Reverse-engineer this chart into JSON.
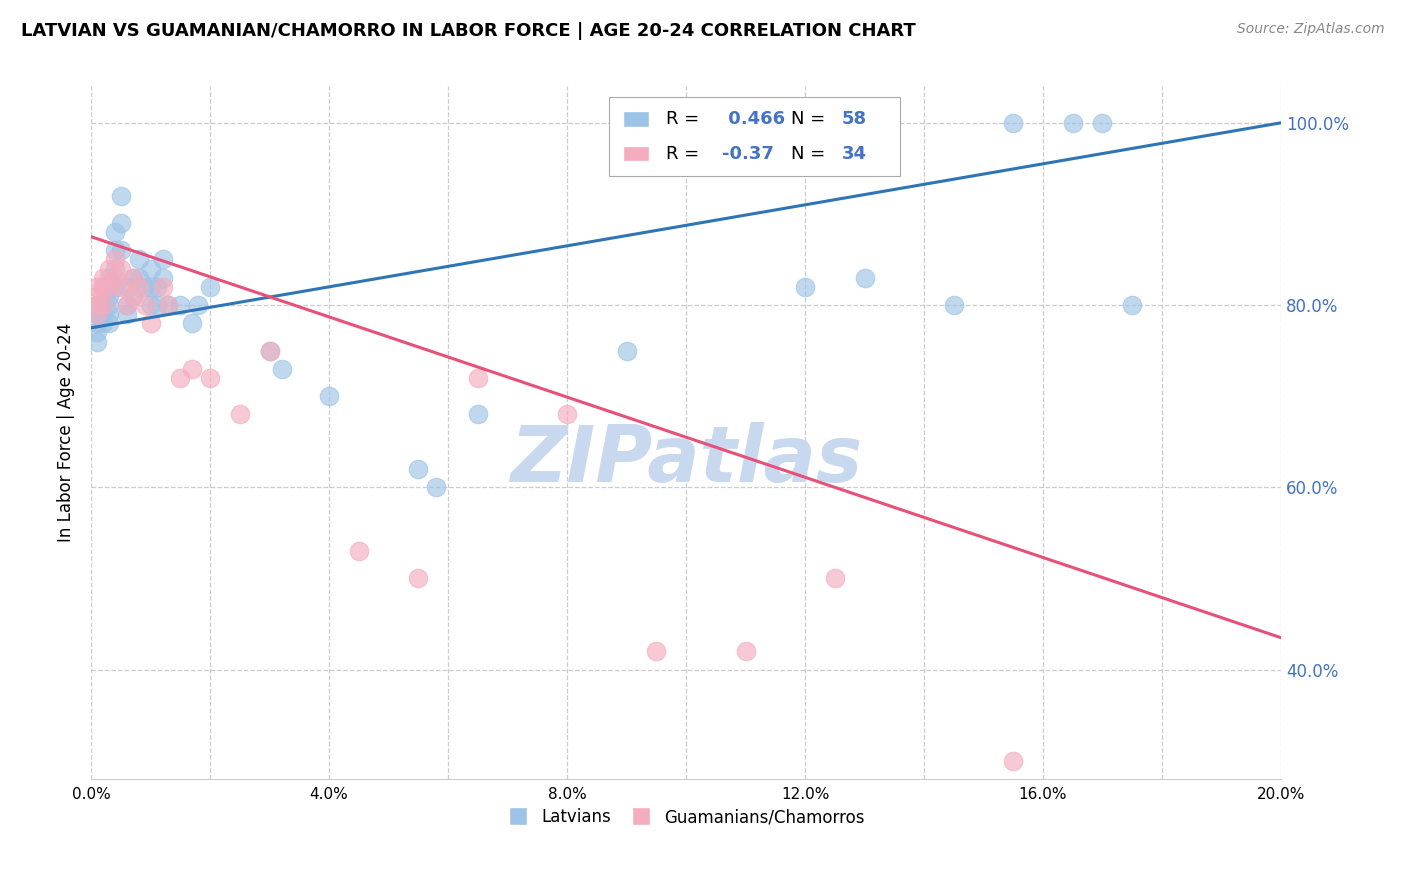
{
  "title": "LATVIAN VS GUAMANIAN/CHAMORRO IN LABOR FORCE | AGE 20-24 CORRELATION CHART",
  "source_text": "Source: ZipAtlas.com",
  "ylabel": "In Labor Force | Age 20-24",
  "xlim": [
    0.0,
    0.2
  ],
  "ylim": [
    0.28,
    1.04
  ],
  "x_ticks": [
    0.0,
    0.02,
    0.04,
    0.06,
    0.08,
    0.1,
    0.12,
    0.14,
    0.16,
    0.18,
    0.2
  ],
  "x_tick_labels": [
    "0.0%",
    "",
    "4.0%",
    "",
    "8.0%",
    "",
    "12.0%",
    "",
    "16.0%",
    "",
    "20.0%"
  ],
  "y_ticks": [
    0.4,
    0.6,
    0.8,
    1.0
  ],
  "blue_color": "#9DC3E6",
  "pink_color": "#F4ACBE",
  "blue_line_color": "#2E75B6",
  "pink_line_color": "#E8507A",
  "blue_R": 0.466,
  "blue_N": 58,
  "pink_R": -0.37,
  "pink_N": 34,
  "legend_label_blue": "Latvians",
  "legend_label_pink": "Guamanians/Chamorros",
  "watermark": "ZIPatlas",
  "watermark_color": "#C8D8EF",
  "latvian_x": [
    0.001,
    0.001,
    0.001,
    0.001,
    0.001,
    0.002,
    0.002,
    0.002,
    0.002,
    0.003,
    0.003,
    0.003,
    0.003,
    0.003,
    0.003,
    0.004,
    0.004,
    0.004,
    0.004,
    0.005,
    0.005,
    0.005,
    0.006,
    0.006,
    0.006,
    0.007,
    0.007,
    0.008,
    0.008,
    0.009,
    0.01,
    0.01,
    0.01,
    0.011,
    0.011,
    0.012,
    0.012,
    0.013,
    0.015,
    0.017,
    0.018,
    0.02,
    0.03,
    0.032,
    0.04,
    0.055,
    0.058,
    0.065,
    0.09,
    0.1,
    0.1,
    0.12,
    0.13,
    0.145,
    0.155,
    0.165,
    0.17,
    0.175
  ],
  "latvian_y": [
    0.8,
    0.79,
    0.78,
    0.77,
    0.76,
    0.8,
    0.79,
    0.78,
    0.82,
    0.83,
    0.82,
    0.81,
    0.8,
    0.79,
    0.78,
    0.88,
    0.86,
    0.84,
    0.82,
    0.92,
    0.89,
    0.86,
    0.82,
    0.8,
    0.79,
    0.83,
    0.81,
    0.85,
    0.83,
    0.82,
    0.84,
    0.82,
    0.8,
    0.82,
    0.8,
    0.85,
    0.83,
    0.8,
    0.8,
    0.78,
    0.8,
    0.82,
    0.75,
    0.73,
    0.7,
    0.62,
    0.6,
    0.68,
    0.75,
    1.0,
    1.0,
    0.82,
    0.83,
    0.8,
    1.0,
    1.0,
    1.0,
    0.8
  ],
  "guam_x": [
    0.001,
    0.001,
    0.001,
    0.001,
    0.002,
    0.002,
    0.002,
    0.003,
    0.003,
    0.004,
    0.004,
    0.005,
    0.005,
    0.006,
    0.007,
    0.007,
    0.008,
    0.009,
    0.01,
    0.012,
    0.013,
    0.015,
    0.017,
    0.02,
    0.025,
    0.03,
    0.045,
    0.055,
    0.065,
    0.08,
    0.095,
    0.11,
    0.125,
    0.155
  ],
  "guam_y": [
    0.82,
    0.81,
    0.8,
    0.79,
    0.83,
    0.82,
    0.8,
    0.84,
    0.82,
    0.85,
    0.83,
    0.84,
    0.82,
    0.8,
    0.83,
    0.81,
    0.82,
    0.8,
    0.78,
    0.82,
    0.8,
    0.72,
    0.73,
    0.72,
    0.68,
    0.75,
    0.53,
    0.5,
    0.72,
    0.68,
    0.42,
    0.42,
    0.5,
    0.3
  ],
  "blue_trendline_x": [
    0.0,
    0.2
  ],
  "blue_trendline_y": [
    0.775,
    1.0
  ],
  "pink_trendline_x": [
    0.0,
    0.2
  ],
  "pink_trendline_y": [
    0.875,
    0.435
  ]
}
